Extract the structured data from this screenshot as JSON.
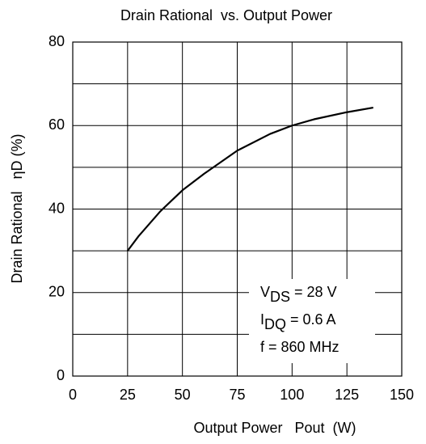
{
  "chart_data": {
    "type": "line",
    "title": "Drain Rational  vs. Output Power",
    "x_label": "Output Power   Pout  (W)",
    "y_label": "Drain Rational   ηD (%)",
    "x": [
      25,
      30,
      40,
      50,
      60,
      75,
      90,
      100,
      110,
      125,
      137
    ],
    "series": [
      {
        "name": "Drain Rational",
        "color": "#000000",
        "values": [
          30,
          33.5,
          39.5,
          44.5,
          48.5,
          54,
          58,
          60,
          61.5,
          63.2,
          64.3
        ]
      }
    ],
    "xlim": [
      0,
      150
    ],
    "xticks": [
      0,
      25,
      50,
      75,
      100,
      125,
      150
    ],
    "ylim": [
      0,
      80
    ],
    "yticks": [
      0,
      20,
      40,
      60,
      80
    ],
    "yminorticks": [
      10,
      30,
      50,
      70
    ],
    "grid": true,
    "annotations": [
      {
        "main": "V",
        "sub": "DS",
        "rest": " = 28 V"
      },
      {
        "main": "I",
        "sub": "DQ",
        "rest": " = 0.6 A"
      },
      {
        "main": "f = 860 MHz"
      }
    ]
  }
}
